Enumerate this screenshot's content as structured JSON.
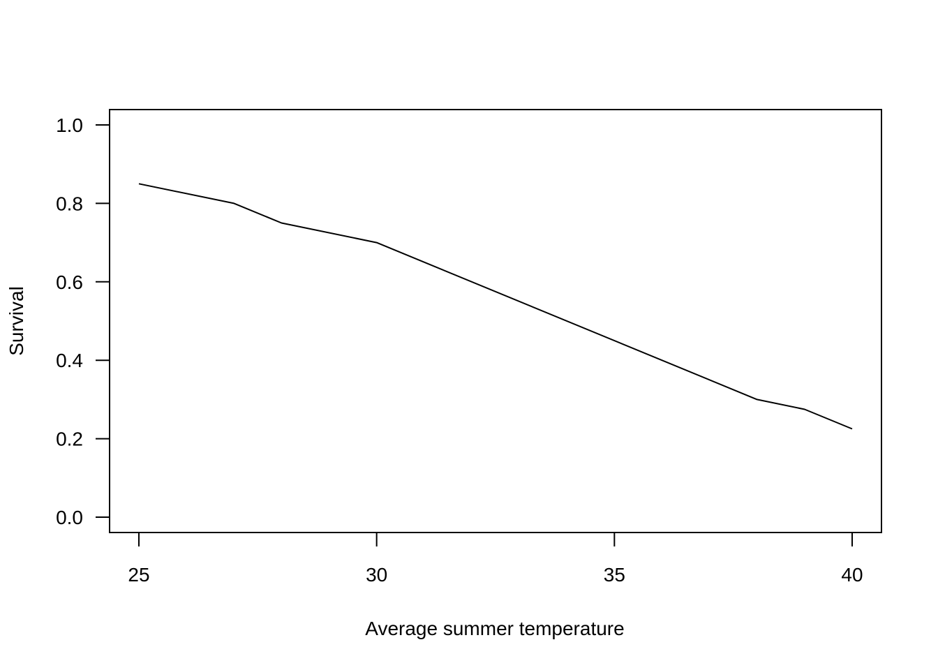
{
  "chart_data": {
    "type": "line",
    "title": "",
    "xlabel": "Average summer temperature",
    "ylabel": "Survival",
    "xlim": [
      25,
      40
    ],
    "ylim": [
      0,
      1
    ],
    "x_ticks": [
      25,
      30,
      35,
      40
    ],
    "x_tick_labels": [
      "25",
      "30",
      "35",
      "40"
    ],
    "y_ticks": [
      0,
      0.2,
      0.4,
      0.6,
      0.8,
      1.0
    ],
    "y_tick_labels": [
      "0.0",
      "0.2",
      "0.4",
      "0.6",
      "0.8",
      "1.0"
    ],
    "grid": false,
    "legend": "none",
    "series": [
      {
        "x": [
          25,
          27,
          28,
          30,
          38,
          39,
          40
        ],
        "y": [
          0.85,
          0.8,
          0.75,
          0.7,
          0.3,
          0.275,
          0.225
        ],
        "color": "#000000"
      }
    ]
  }
}
